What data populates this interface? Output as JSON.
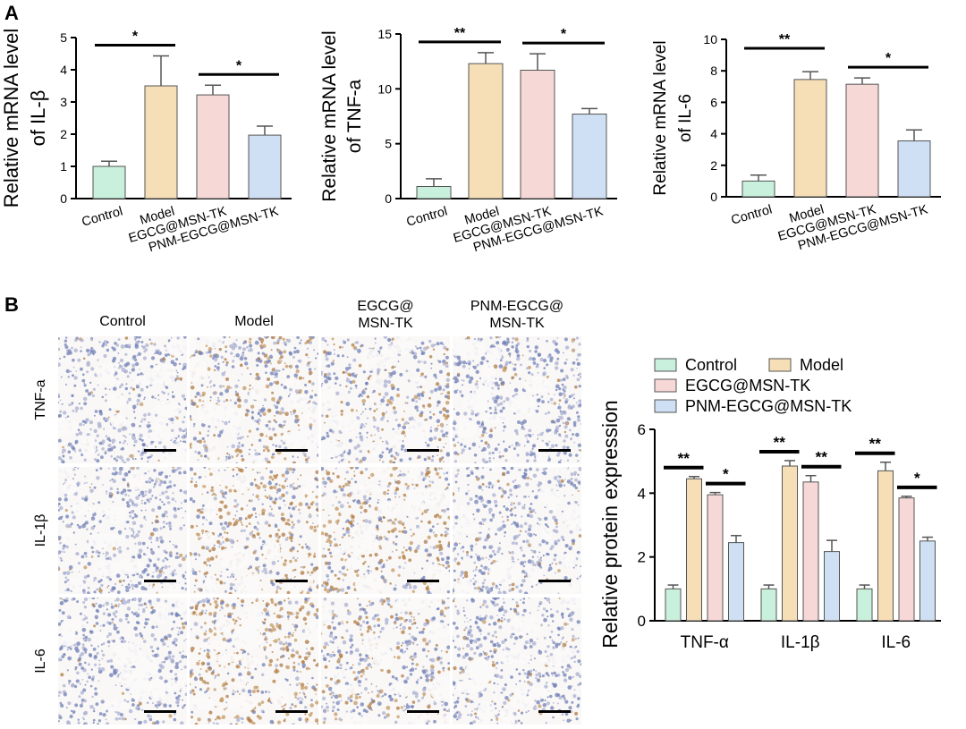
{
  "panel_labels": {
    "a": "A",
    "b": "B"
  },
  "colors": {
    "control": "#c8f0dc",
    "model": "#f6dfb6",
    "egcg": "#f6d8d6",
    "pnm": "#cfe0f4",
    "tissue_bg": "#f4f0ec",
    "nuclei": "#5b6aa6",
    "brown": "#b98b4e",
    "scale_bar": "#000000"
  },
  "chart_data": [
    {
      "id": "il1b",
      "type": "bar",
      "ylabel_line1": "Relative mRNA level",
      "ylabel_line2": "of IL-β",
      "ylim": [
        0,
        5
      ],
      "yticks": [
        "0",
        "1",
        "2",
        "3",
        "4",
        "5"
      ],
      "categories": [
        "Control",
        "Model",
        "EGCG@MSN-TK",
        "PNM-EGCG@MSN-TK"
      ],
      "values": [
        1.0,
        3.5,
        3.22,
        1.97
      ],
      "errors": [
        0.16,
        0.93,
        0.3,
        0.28
      ],
      "sig": [
        {
          "from": 0,
          "to": 1,
          "label": "*"
        },
        {
          "from": 2,
          "to": 3,
          "label": "*"
        }
      ]
    },
    {
      "id": "tnfa",
      "type": "bar",
      "ylabel_line1": "Relative mRNA level",
      "ylabel_line2": "of TNF-a",
      "ylim": [
        0,
        15
      ],
      "yticks": [
        "0",
        "5",
        "10",
        "15"
      ],
      "categories": [
        "Control",
        "Model",
        "EGCG@MSN-TK",
        "PNM-EGCG@MSN-TK"
      ],
      "values": [
        1.1,
        12.3,
        11.7,
        7.7
      ],
      "errors": [
        0.7,
        1.0,
        1.5,
        0.5
      ],
      "sig": [
        {
          "from": 0,
          "to": 1,
          "label": "**"
        },
        {
          "from": 2,
          "to": 3,
          "label": "*"
        }
      ]
    },
    {
      "id": "il6",
      "type": "bar",
      "ylabel_line1": "Relative mRNA level",
      "ylabel_line2": "of IL-6",
      "ylim": [
        0,
        10
      ],
      "yticks": [
        "0",
        "2",
        "4",
        "6",
        "8",
        "10"
      ],
      "categories": [
        "Control",
        "Model",
        "EGCG@MSN-TK",
        "PNM-EGCG@MSN-TK"
      ],
      "values": [
        1.0,
        7.45,
        7.15,
        3.55
      ],
      "errors": [
        0.38,
        0.5,
        0.4,
        0.7
      ],
      "sig": [
        {
          "from": 0,
          "to": 1,
          "label": "**"
        },
        {
          "from": 2,
          "to": 3,
          "label": "*"
        }
      ]
    },
    {
      "id": "protein",
      "type": "grouped-bar",
      "ylabel": "Relative protein expression",
      "ylim": [
        0,
        6
      ],
      "yticks": [
        "0",
        "2",
        "4",
        "6"
      ],
      "categories": [
        "TNF-α",
        "IL-1β",
        "IL-6"
      ],
      "legend": [
        "Control",
        "Model",
        "EGCG@MSN-TK",
        "PNM-EGCG@MSN-TK"
      ],
      "series": [
        {
          "name": "Control",
          "values": [
            1.0,
            1.0,
            1.0
          ],
          "errors": [
            0.12,
            0.12,
            0.12
          ]
        },
        {
          "name": "Model",
          "values": [
            4.45,
            4.85,
            4.7
          ],
          "errors": [
            0.07,
            0.17,
            0.27
          ]
        },
        {
          "name": "EGCG@MSN-TK",
          "values": [
            3.95,
            4.35,
            3.85
          ],
          "errors": [
            0.07,
            0.2,
            0.05
          ]
        },
        {
          "name": "PNM-EGCG@MSN-TK",
          "values": [
            2.45,
            2.17,
            2.5
          ],
          "errors": [
            0.22,
            0.35,
            0.12
          ]
        }
      ],
      "sig": [
        {
          "group": 0,
          "from": 0,
          "to": 1,
          "label": "**"
        },
        {
          "group": 0,
          "from": 2,
          "to": 3,
          "label": "*"
        },
        {
          "group": 1,
          "from": 0,
          "to": 1,
          "label": "**"
        },
        {
          "group": 1,
          "from": 2,
          "to": 3,
          "label": "**"
        },
        {
          "group": 2,
          "from": 0,
          "to": 1,
          "label": "**"
        },
        {
          "group": 2,
          "from": 2,
          "to": 3,
          "label": "*"
        }
      ]
    }
  ],
  "micrographs": {
    "columns": [
      "Control",
      "Model",
      "EGCG@ MSN-TK",
      "PNM-EGCG@ MSN-TK"
    ],
    "rows": [
      "TNF-a",
      "IL-1β",
      "IL-6"
    ],
    "stain_intensity": [
      [
        0.05,
        0.35,
        0.25,
        0.08
      ],
      [
        0.05,
        0.55,
        0.5,
        0.1
      ],
      [
        0.05,
        0.6,
        0.3,
        0.1
      ]
    ]
  }
}
